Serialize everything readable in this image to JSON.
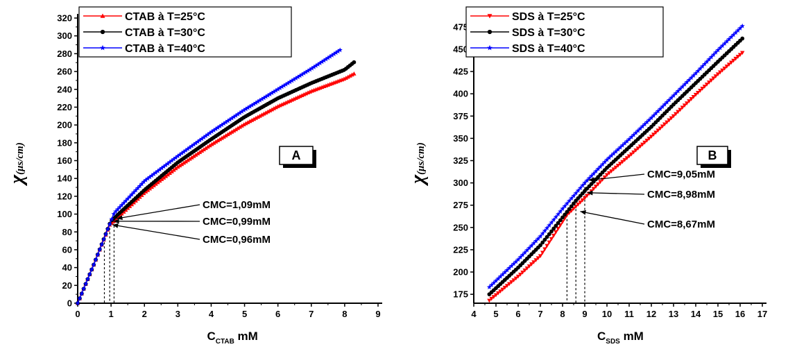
{
  "chart_data": [
    {
      "type": "scatter",
      "panel_label": "A",
      "xlabel_main": "C",
      "xlabel_sub": "CTAB",
      "xlabel_unit": " mM",
      "ylabel_symbol": "χ",
      "ylabel_unit": "(μs/cm)",
      "xlim": [
        0,
        9
      ],
      "ylim": [
        0,
        320
      ],
      "xticks": [
        0,
        1,
        2,
        3,
        4,
        5,
        6,
        7,
        8,
        9
      ],
      "yticks": [
        0,
        10,
        20,
        30,
        40,
        50,
        60,
        70,
        80,
        90,
        100,
        110,
        120,
        130,
        140,
        150,
        160,
        170,
        180,
        190,
        200,
        210,
        220,
        230,
        240,
        250,
        260,
        270,
        280,
        290,
        300,
        310,
        320
      ],
      "ytick_labels": [
        "0",
        "",
        "20",
        "",
        "40",
        "",
        "60",
        "",
        "80",
        "",
        "100",
        "",
        "120",
        "",
        "140",
        "",
        "160",
        "",
        "180",
        "",
        "200",
        "",
        "220",
        "",
        "240",
        "",
        "260",
        "",
        "280",
        "",
        "300",
        "",
        "320"
      ],
      "legend_position": "top-left",
      "series": [
        {
          "name": "CTAB  à T=25°C",
          "color": "#ff0000",
          "marker": "triangle-up",
          "x": [
            0,
            0.5,
            0.96,
            2,
            3,
            4,
            5,
            6,
            7,
            8,
            8.3
          ],
          "y": [
            0,
            45,
            88,
            124,
            153,
            178,
            201,
            221,
            238,
            252,
            258
          ]
        },
        {
          "name": "CTAB  à T=30°C",
          "color": "#000000",
          "marker": "circle",
          "x": [
            0,
            0.5,
            0.99,
            2,
            3,
            4,
            5,
            6,
            7,
            8,
            8.3
          ],
          "y": [
            0,
            45,
            92,
            127,
            158,
            184,
            209,
            230,
            247,
            262,
            271
          ]
        },
        {
          "name": "CTAB  à T=40°C",
          "color": "#0000ff",
          "marker": "star",
          "x": [
            0,
            0.5,
            1.09,
            2,
            3,
            4,
            5,
            6,
            7,
            7.9
          ],
          "y": [
            0,
            45,
            101,
            137,
            165,
            192,
            217,
            240,
            263,
            285
          ]
        }
      ],
      "annotations": [
        {
          "text": "CMC=1,09mM",
          "x": 1.09,
          "y": 95
        },
        {
          "text": "CMC=0,99mM",
          "x": 0.99,
          "y": 92
        },
        {
          "text": "CMC=0,96mM",
          "x": 0.96,
          "y": 88
        }
      ],
      "cmc_markers": [
        0.8,
        0.96,
        1.09
      ]
    },
    {
      "type": "scatter",
      "panel_label": "B",
      "xlabel_main": "C",
      "xlabel_sub": "SDS",
      "xlabel_unit": " mM",
      "ylabel_symbol": "χ",
      "ylabel_unit": "(μs/cm)",
      "xlim": [
        4,
        17
      ],
      "ylim": [
        165,
        485
      ],
      "xticks": [
        4,
        5,
        6,
        7,
        8,
        9,
        10,
        11,
        12,
        13,
        14,
        15,
        16,
        17
      ],
      "yticks": [
        175,
        200,
        225,
        250,
        275,
        300,
        325,
        350,
        375,
        400,
        425,
        450,
        475
      ],
      "legend_position": "top-left",
      "series": [
        {
          "name": "SDS  à T=25°C",
          "color": "#ff0000",
          "marker": "triangle-down",
          "x": [
            4.7,
            6,
            7,
            8.2,
            9,
            10,
            11,
            12,
            13,
            14,
            15,
            16.1
          ],
          "y": [
            168,
            195,
            218,
            264,
            283,
            309,
            330,
            352,
            375,
            399,
            422,
            446
          ]
        },
        {
          "name": "SDS  à T=30°C",
          "color": "#000000",
          "marker": "circle",
          "x": [
            4.7,
            6,
            7,
            8.6,
            9,
            10,
            11,
            12,
            13,
            14,
            15,
            16.1
          ],
          "y": [
            175,
            205,
            230,
            280,
            291,
            317,
            340,
            363,
            388,
            412,
            436,
            462
          ]
        },
        {
          "name": "SDS  à T=40°C",
          "color": "#0000ff",
          "marker": "star",
          "x": [
            4.7,
            6,
            7,
            8,
            9,
            10,
            11,
            12,
            13,
            14,
            15,
            16.1
          ],
          "y": [
            183,
            214,
            240,
            271,
            300,
            326,
            349,
            373,
            398,
            423,
            449,
            476
          ]
        }
      ],
      "annotations": [
        {
          "text": "CMC=9,05mM",
          "x": 9.05,
          "y": 303
        },
        {
          "text": "CMC=8,98mM",
          "x": 8.98,
          "y": 289
        },
        {
          "text": "CMC=8,67mM",
          "x": 8.67,
          "y": 268
        }
      ],
      "cmc_markers": [
        8.2,
        8.6,
        9.0
      ]
    }
  ]
}
